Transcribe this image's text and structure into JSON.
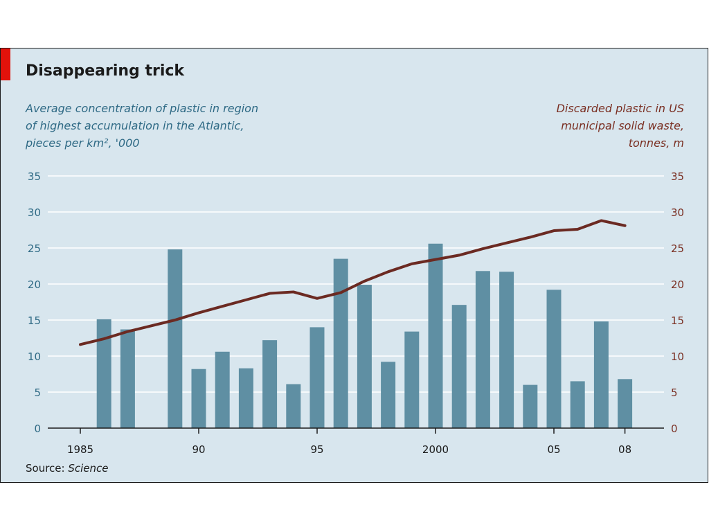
{
  "chart_data": {
    "type": "bar",
    "title": "Disappearing trick",
    "left_axis_label": "Average concentration of plastic in region\nof highest accumulation in the Atlantic,\npieces per km², '000",
    "right_axis_label": "Discarded plastic in US\nmunicipal solid waste,\ntonnes, m",
    "x": [
      1985,
      1986,
      1987,
      1988,
      1989,
      1990,
      1991,
      1992,
      1993,
      1994,
      1995,
      1996,
      1997,
      1998,
      1999,
      2000,
      2001,
      2002,
      2003,
      2004,
      2005,
      2006,
      2007,
      2008
    ],
    "x_tick_values": [
      1985,
      1990,
      1995,
      2000,
      2005,
      2008
    ],
    "x_tick_labels": [
      "1985",
      "90",
      "95",
      "2000",
      "05",
      "08"
    ],
    "ylim": [
      0,
      35
    ],
    "y_ticks": [
      0,
      5,
      10,
      15,
      20,
      25,
      30,
      35
    ],
    "grid": true,
    "series": [
      {
        "type": "bar",
        "axis": "left",
        "color": "#5f8fa3",
        "values": [
          null,
          15.1,
          13.7,
          null,
          24.8,
          8.2,
          10.6,
          8.3,
          12.2,
          6.1,
          14.0,
          23.5,
          19.9,
          9.2,
          13.4,
          25.6,
          17.1,
          21.8,
          21.7,
          6.0,
          19.2,
          6.5,
          14.8,
          6.8
        ]
      },
      {
        "type": "line",
        "axis": "right",
        "color": "#6b2a22",
        "values": [
          11.6,
          12.4,
          13.4,
          14.2,
          15.0,
          16.0,
          16.9,
          17.8,
          18.7,
          18.9,
          18.0,
          18.8,
          20.4,
          21.7,
          22.8,
          23.4,
          24.0,
          24.9,
          25.7,
          26.5,
          27.4,
          27.6,
          28.8,
          28.1
        ]
      }
    ]
  },
  "source": {
    "prefix": "Source: ",
    "name": "Science"
  },
  "colors": {
    "background": "#d8e6ee",
    "accent": "#e3120b",
    "grid": "#ffffff",
    "left_axis_text": "#2f6a85",
    "right_axis_text": "#7a2f22",
    "bars": "#5f8fa3",
    "line": "#6b2a22"
  }
}
